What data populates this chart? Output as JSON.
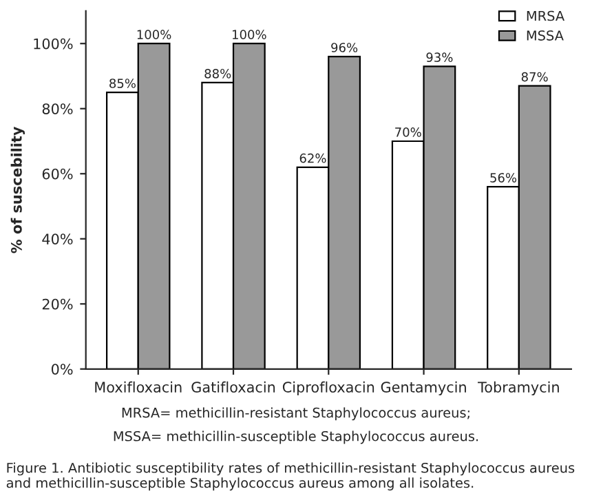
{
  "chart_data": {
    "type": "bar",
    "ylabel": "% of suscebility",
    "categories": [
      "Moxifloxacin",
      "Gatifloxacin",
      "Ciprofloxacin",
      "Gentamycin",
      "Tobramycin"
    ],
    "series": [
      {
        "name": "MRSA",
        "color": "#ffffff",
        "values": [
          85,
          88,
          62,
          70,
          56
        ],
        "value_labels": [
          "85%",
          "88%",
          "62%",
          "70%",
          "56%"
        ]
      },
      {
        "name": "MSSA",
        "color": "#999999",
        "values": [
          100,
          100,
          96,
          93,
          87
        ],
        "value_labels": [
          "100%",
          "100%",
          "96%",
          "93%",
          "87%"
        ]
      }
    ],
    "ylim": [
      0,
      110
    ],
    "yticks": [
      {
        "value": 0,
        "label": "0%"
      },
      {
        "value": 20,
        "label": "20%"
      },
      {
        "value": 40,
        "label": "40%"
      },
      {
        "value": 60,
        "label": "60%"
      },
      {
        "value": 80,
        "label": "80%"
      },
      {
        "value": 100,
        "label": "100%"
      }
    ],
    "legend": "top right",
    "grid": false,
    "annotations": [
      "MRSA= methicillin-resistant Staphylococcus aureus;",
      "MSSA= methicillin-susceptible Staphylococcus aureus.",
      "Figure 1. Antibiotic susceptibility rates of methicillin-resistant Staphylococcus aureus and methicillin-susceptible Staphylococcus aureus among all isolates."
    ]
  }
}
